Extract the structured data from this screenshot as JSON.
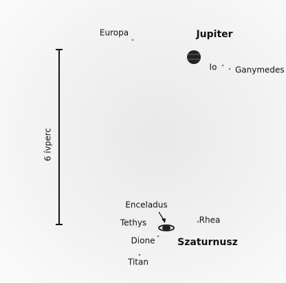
{
  "planets": [
    {
      "label": "Jupiter",
      "moons": [
        "Europa",
        "Io",
        "Ganymedes"
      ]
    },
    {
      "label": "Szaturnusz",
      "moons": [
        "Enceladus",
        "Tethys",
        "Rhea",
        "Dione",
        "Titan"
      ]
    }
  ],
  "scale_bar": {
    "label": "6 ívperc"
  }
}
